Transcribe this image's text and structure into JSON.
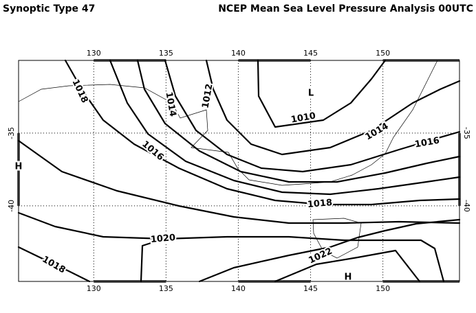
{
  "header": {
    "left_title": "Synoptic Type 47",
    "right_title": "NCEP Mean Sea Level Pressure Analysis 00UTC"
  },
  "map": {
    "lonlim": [
      124.8,
      155.3
    ],
    "latlim": [
      -30,
      -45.2
    ],
    "lon_ticks": [
      130,
      135,
      140,
      145,
      150
    ],
    "lat_ticks": [
      -35,
      -40
    ],
    "isobar_labels": [
      "1018",
      "1014",
      "1012",
      "1016",
      "1010",
      "1014",
      "1016",
      "1018",
      "1020",
      "1018",
      "1022"
    ],
    "centers": [
      "L",
      "H",
      "H"
    ]
  }
}
